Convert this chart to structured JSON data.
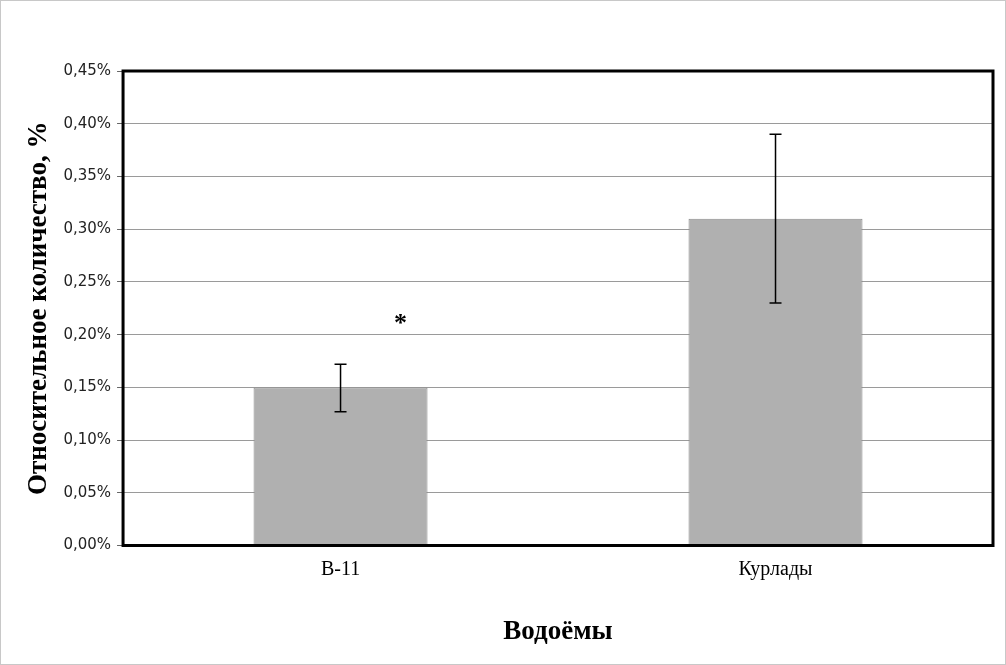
{
  "chart_data": {
    "type": "bar",
    "xlabel": "Водоёмы",
    "ylabel": "Относительное количество, %",
    "categories": [
      "B-11",
      "Курлады"
    ],
    "values": [
      0.15,
      0.31
    ],
    "errors": [
      [
        0.127,
        0.172
      ],
      [
        0.23,
        0.39
      ]
    ],
    "color": "#b0b0b0",
    "ylim": [
      0,
      0.45
    ],
    "yticks": [
      {
        "value": 0,
        "label": "0,00%"
      },
      {
        "value": 0.05,
        "label": "0,05%"
      },
      {
        "value": 0.1,
        "label": "0,10%"
      },
      {
        "value": 0.15,
        "label": "0,15%"
      },
      {
        "value": 0.2,
        "label": "0,20%"
      },
      {
        "value": 0.25,
        "label": "0,25%"
      },
      {
        "value": 0.3,
        "label": "0,30%"
      },
      {
        "value": 0.35,
        "label": "0,35%"
      },
      {
        "value": 0.4,
        "label": "0,40%"
      },
      {
        "value": 0.45,
        "label": "0,45%"
      }
    ],
    "grid": "y",
    "legend": false,
    "annotations": [
      "*"
    ]
  }
}
